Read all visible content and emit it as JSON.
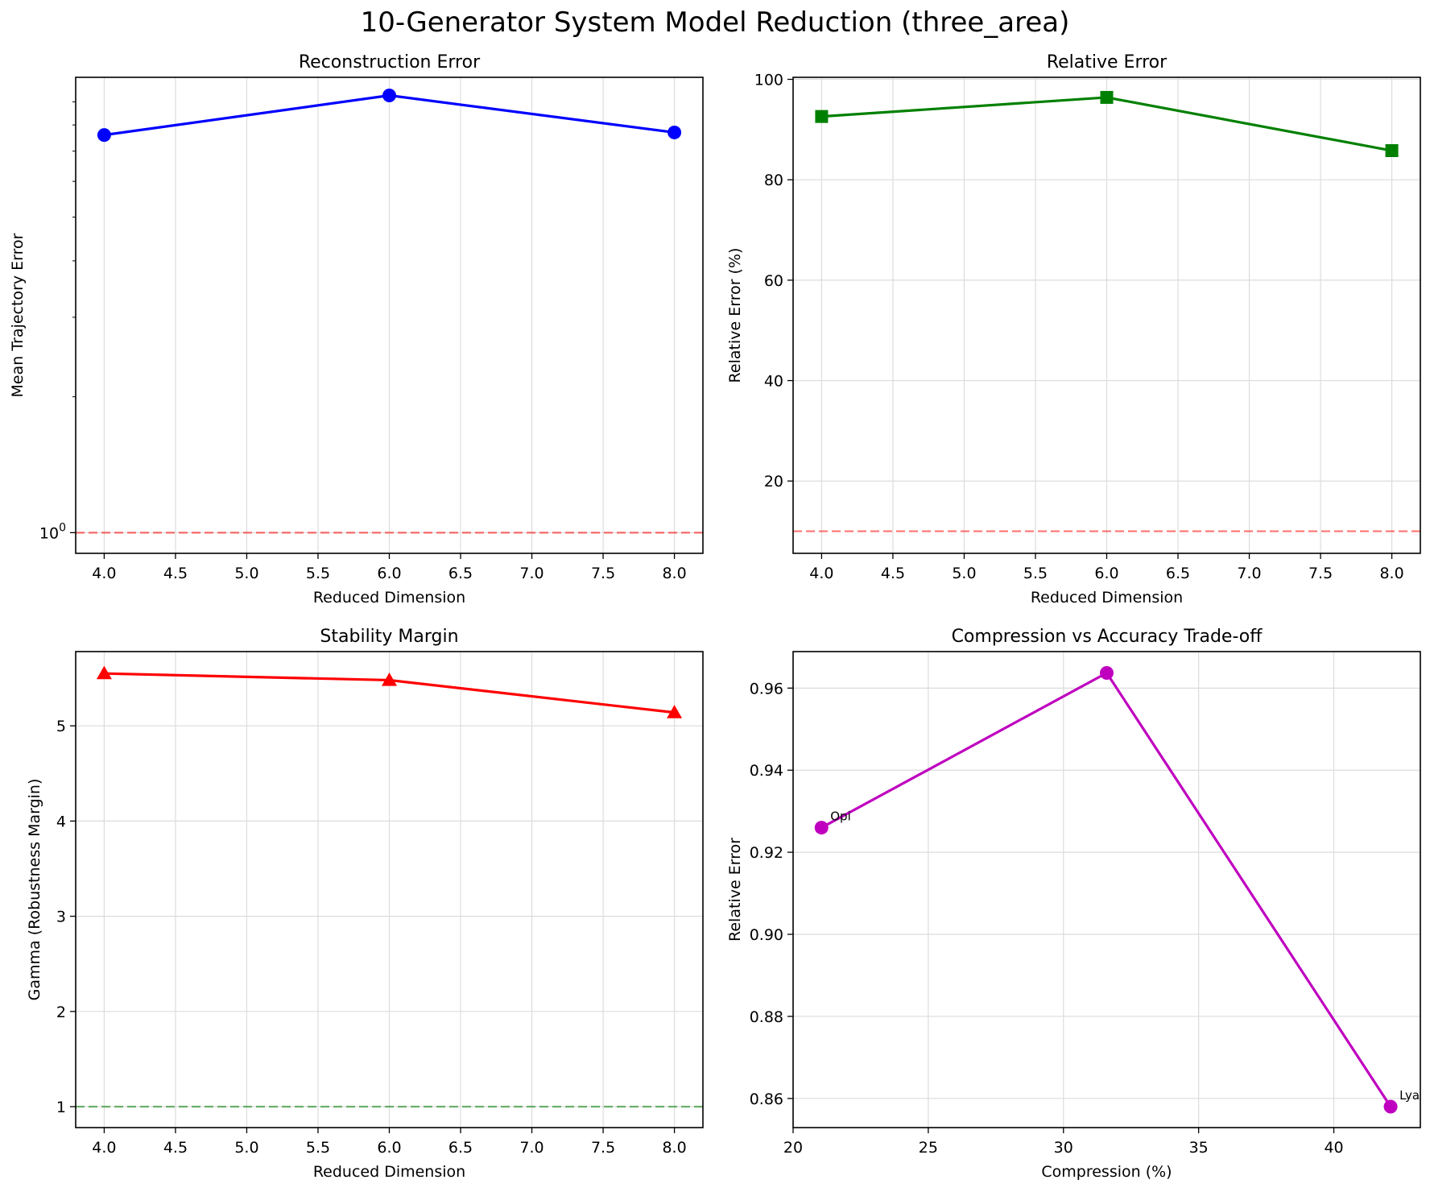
{
  "figure": {
    "title": "10-Generator System Model Reduction (three_area)"
  },
  "chart_data": [
    {
      "type": "line",
      "title": "Reconstruction Error",
      "xlabel": "Reduced Dimension",
      "ylabel": "Mean Trajectory Error",
      "x": [
        4.0,
        6.0,
        8.0
      ],
      "series": [
        {
          "values": [
            7.6,
            9.3,
            7.7
          ],
          "color": "#0000ff",
          "marker": "circle"
        }
      ],
      "xlim": [
        3.8,
        8.2
      ],
      "xticks": [
        "4.0",
        "4.5",
        "5.0",
        "5.5",
        "6.0",
        "6.5",
        "7.0",
        "7.5",
        "8.0"
      ],
      "yscale": "log",
      "ylim": [
        0.9,
        10.2
      ],
      "yticks": [
        {
          "value": 1,
          "base": "10",
          "exp": "0"
        }
      ],
      "reference_line": {
        "y": 1.0,
        "color": "#ff0000",
        "style": "dashed"
      },
      "grid": true
    },
    {
      "type": "line",
      "title": "Relative Error",
      "xlabel": "Reduced Dimension",
      "ylabel": "Relative Error (%)",
      "x": [
        4.0,
        6.0,
        8.0
      ],
      "series": [
        {
          "values": [
            92.6,
            96.4,
            85.8
          ],
          "color": "#008000",
          "marker": "square"
        }
      ],
      "xlim": [
        3.8,
        8.2
      ],
      "xticks": [
        "4.0",
        "4.5",
        "5.0",
        "5.5",
        "6.0",
        "6.5",
        "7.0",
        "7.5",
        "8.0"
      ],
      "ylim": [
        5.6,
        100.4
      ],
      "yticks": [
        "20",
        "40",
        "60",
        "80",
        "100"
      ],
      "reference_line": {
        "y": 10,
        "color": "#ff0000",
        "style": "dashed"
      },
      "grid": true
    },
    {
      "type": "line",
      "title": "Stability Margin",
      "xlabel": "Reduced Dimension",
      "ylabel": "Gamma (Robustness Margin)",
      "x": [
        4.0,
        6.0,
        8.0
      ],
      "series": [
        {
          "values": [
            5.55,
            5.48,
            5.14
          ],
          "color": "#ff0000",
          "marker": "triangle"
        }
      ],
      "xlim": [
        3.8,
        8.2
      ],
      "xticks": [
        "4.0",
        "4.5",
        "5.0",
        "5.5",
        "6.0",
        "6.5",
        "7.0",
        "7.5",
        "8.0"
      ],
      "ylim": [
        0.78,
        5.78
      ],
      "yticks": [
        "1",
        "2",
        "3",
        "4",
        "5"
      ],
      "reference_line": {
        "y": 1.0,
        "color": "#008000",
        "style": "dashed"
      },
      "grid": true
    },
    {
      "type": "line",
      "title": "Compression vs Accuracy Trade-off",
      "xlabel": "Compression (%)",
      "ylabel": "Relative Error",
      "x": [
        21.05,
        31.6,
        42.1
      ],
      "series": [
        {
          "values": [
            0.926,
            0.9637,
            0.858
          ],
          "color": "#bf00bf",
          "marker": "circle"
        }
      ],
      "point_labels": [
        "Opi",
        "",
        "Lya"
      ],
      "xlim": [
        20.0,
        43.2
      ],
      "xticks": [
        "20",
        "25",
        "30",
        "35",
        "40"
      ],
      "ylim": [
        0.8529,
        0.9689
      ],
      "yticks": [
        "0.86",
        "0.88",
        "0.90",
        "0.92",
        "0.94",
        "0.96"
      ],
      "grid": true
    }
  ]
}
